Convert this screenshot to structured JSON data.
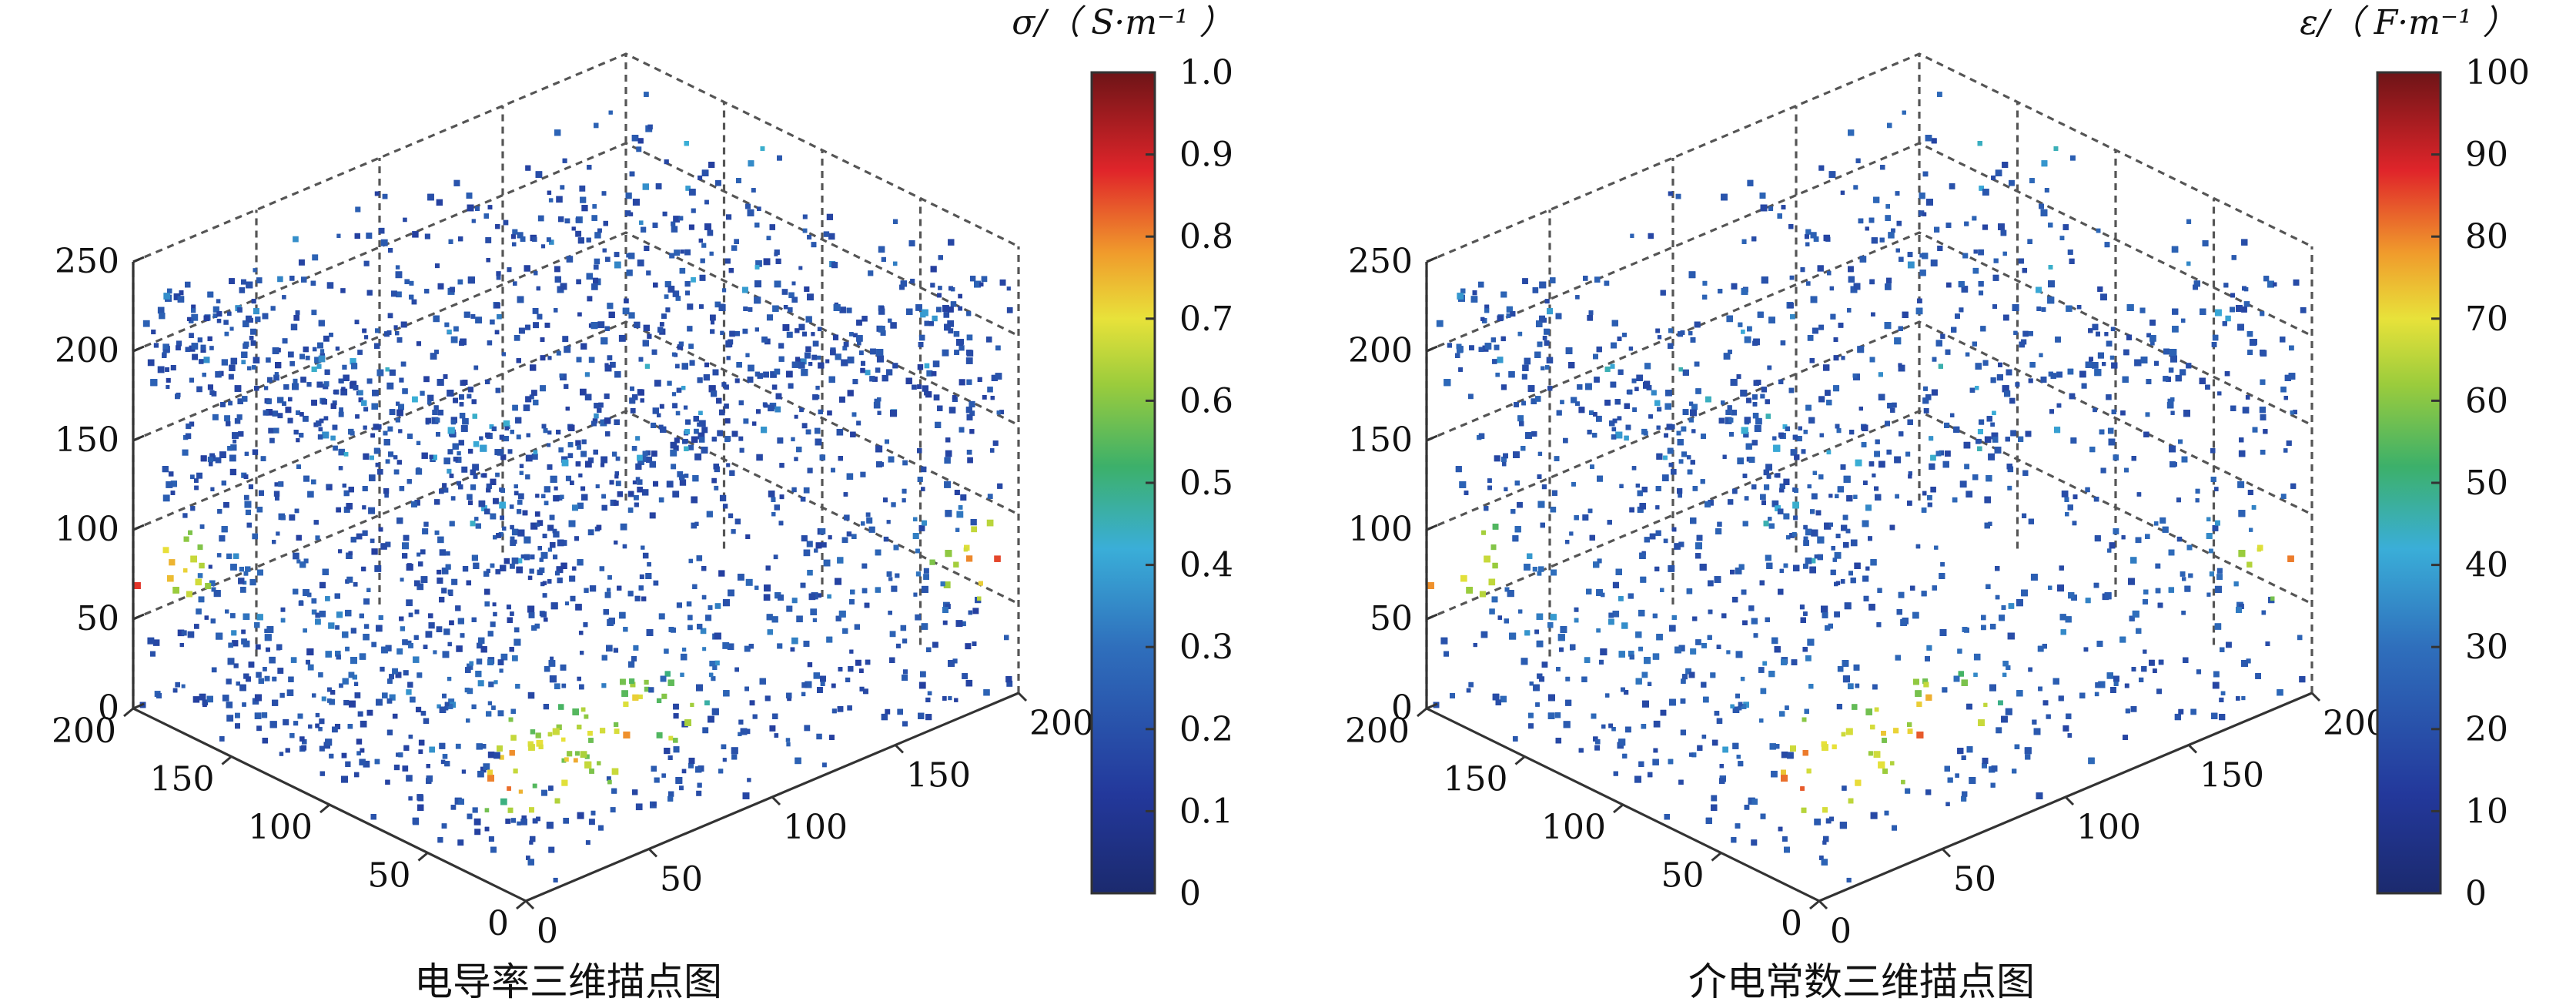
{
  "chart_data": [
    {
      "type": "scatter",
      "subtype": "3d-scatter",
      "caption": "电导率三维描点图",
      "axes": {
        "z_ticks": [
          "0",
          "50",
          "100",
          "150",
          "200",
          "250"
        ],
        "x_ticks": [
          "0",
          "50",
          "100",
          "150",
          "200"
        ],
        "y_ticks": [
          "0",
          "50",
          "100",
          "150",
          "200"
        ],
        "xlim": [
          0,
          200
        ],
        "ylim": [
          0,
          200
        ],
        "zlim": [
          0,
          250
        ],
        "grid": true
      },
      "colorbar": {
        "label": "σ/（ S·m⁻¹ ）",
        "ticks": [
          "0",
          "0.1",
          "0.2",
          "0.3",
          "0.4",
          "0.5",
          "0.6",
          "0.7",
          "0.8",
          "0.9",
          "1.0"
        ],
        "range": [
          0,
          1.0
        ],
        "colormap": "jet"
      },
      "points": {
        "shape": "roughly cube-shaped cloud with rounded edges",
        "background_value": 0.2,
        "hot_spots": [
          {
            "x": 0,
            "y": 200,
            "z": 75,
            "value": 0.95
          },
          {
            "x": 200,
            "y": 0,
            "z": 75,
            "value": 0.95
          },
          {
            "x": 10,
            "y": 10,
            "z": 60,
            "value": 0.9
          },
          {
            "x": 50,
            "y": 10,
            "z": 60,
            "value": 0.85
          }
        ]
      }
    },
    {
      "type": "scatter",
      "subtype": "3d-scatter",
      "caption": "介电常数三维描点图",
      "axes": {
        "z_ticks": [
          "0",
          "50",
          "100",
          "150",
          "200",
          "250"
        ],
        "x_ticks": [
          "0",
          "50",
          "100",
          "150",
          "200"
        ],
        "y_ticks": [
          "0",
          "50",
          "100",
          "150",
          "200"
        ],
        "xlim": [
          0,
          200
        ],
        "ylim": [
          0,
          200
        ],
        "zlim": [
          0,
          250
        ],
        "grid": true
      },
      "colorbar": {
        "label": "ε/（ F·m⁻¹ ）",
        "ticks": [
          "0",
          "10",
          "20",
          "30",
          "40",
          "50",
          "60",
          "70",
          "80",
          "90",
          "100"
        ],
        "range": [
          0,
          100
        ],
        "colormap": "jet"
      },
      "points": {
        "shape": "roughly cube-shaped cloud with rounded edges",
        "background_value": 22,
        "hot_spots": [
          {
            "x": 0,
            "y": 200,
            "z": 80,
            "value": 95
          },
          {
            "x": 200,
            "y": 0,
            "z": 80,
            "value": 95
          },
          {
            "x": 10,
            "y": 10,
            "z": 60,
            "value": 92
          },
          {
            "x": 50,
            "y": 10,
            "z": 60,
            "value": 90
          }
        ]
      }
    }
  ]
}
